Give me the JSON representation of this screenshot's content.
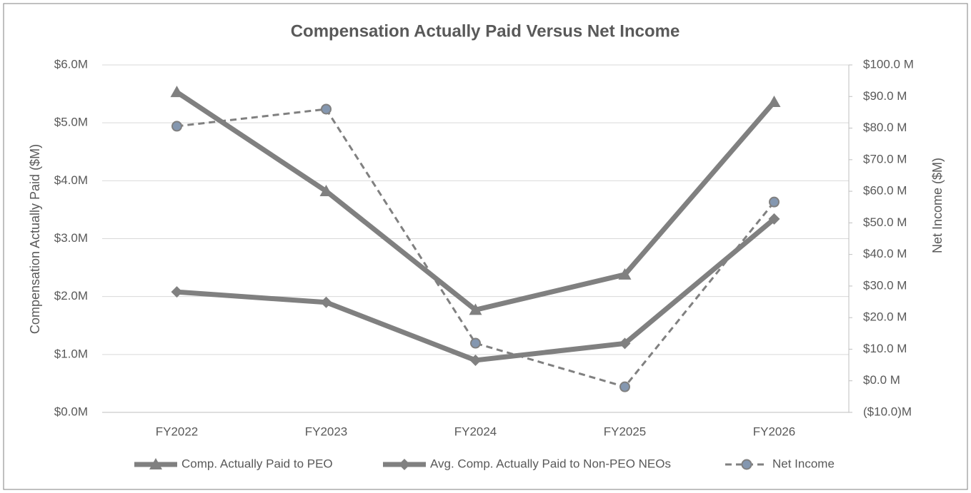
{
  "chart_data": {
    "type": "line",
    "title": "Compensation Actually Paid Versus Net Income",
    "y_label": "Compensation Actually Paid ($M)",
    "y2_label": "Net Income ($M)",
    "categories": [
      "FY2022",
      "FY2023",
      "FY2024",
      "FY2025",
      "FY2026"
    ],
    "ylim": [
      0,
      6
    ],
    "yticks": [
      {
        "value": 0,
        "label": "$0.0M"
      },
      {
        "value": 1,
        "label": "$1.0M"
      },
      {
        "value": 2,
        "label": "$2.0M"
      },
      {
        "value": 3,
        "label": "$3.0M"
      },
      {
        "value": 4,
        "label": "$4.0M"
      },
      {
        "value": 5,
        "label": "$5.0M"
      },
      {
        "value": 6,
        "label": "$6.0M"
      }
    ],
    "y2lim": [
      -10,
      100
    ],
    "y2ticks": [
      {
        "value": -10,
        "label": "($10.0)M"
      },
      {
        "value": 0,
        "label": "$0.0 M"
      },
      {
        "value": 10,
        "label": "$10.0 M"
      },
      {
        "value": 20,
        "label": "$20.0 M"
      },
      {
        "value": 30,
        "label": "$30.0 M"
      },
      {
        "value": 40,
        "label": "$40.0 M"
      },
      {
        "value": 50,
        "label": "$50.0 M"
      },
      {
        "value": 60,
        "label": "$60.0 M"
      },
      {
        "value": 70,
        "label": "$70.0 M"
      },
      {
        "value": 80,
        "label": "$80.0 M"
      },
      {
        "value": 90,
        "label": "$90.0 M"
      },
      {
        "value": 100,
        "label": "$100.0 M"
      }
    ],
    "grid": true,
    "legend": "bottom",
    "series": [
      {
        "name": "Comp. Actually Paid to PEO",
        "color": "#808080",
        "marker": "triangle",
        "values": [
          5.53,
          3.82,
          1.77,
          2.38,
          5.36
        ]
      },
      {
        "name": "Avg. Comp. Actually Paid to Non-PEO NEOs",
        "color": "#808080",
        "marker": "diamond",
        "values": [
          2.08,
          1.9,
          0.9,
          1.19,
          3.34
        ]
      },
      {
        "name": "Net Income",
        "color": "#808080",
        "marker": "circle",
        "dashed": true,
        "axis": "y2",
        "values": [
          80.6,
          86.0,
          11.9,
          -1.9,
          56.6
        ]
      }
    ]
  }
}
